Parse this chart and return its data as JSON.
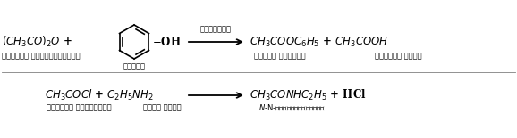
{
  "bg_color": "white",
  "r1_reactant1": "(CH$_3$CO)$_2$O +",
  "r1_reactant1_sub": "एसीटिक एनहाइड्राइड",
  "r1_phenol_sub": "फीनॉल",
  "r1_oh": "−OH",
  "r1_arrow_label": "पिरिडीन",
  "r1_product": "CH$_3$COOC$_6$H$_5$ + CH$_3$COOH",
  "r1_prod_sub1": "फेनिल एसीटेट",
  "r1_prod_sub2": "एसीटिक अम्ल",
  "r2_reactants": "CH$_3$COCl + C$_2$H$_5$NH$_2$",
  "r2_sub1": "एसीटिल क्लोराइड",
  "r2_sub2": "एथिल एमीन",
  "r2_product": "CH$_3$CONHC$_2$H$_5$ + HCl",
  "r2_prod_sub": "N-एथिलएसीटेमाइड"
}
